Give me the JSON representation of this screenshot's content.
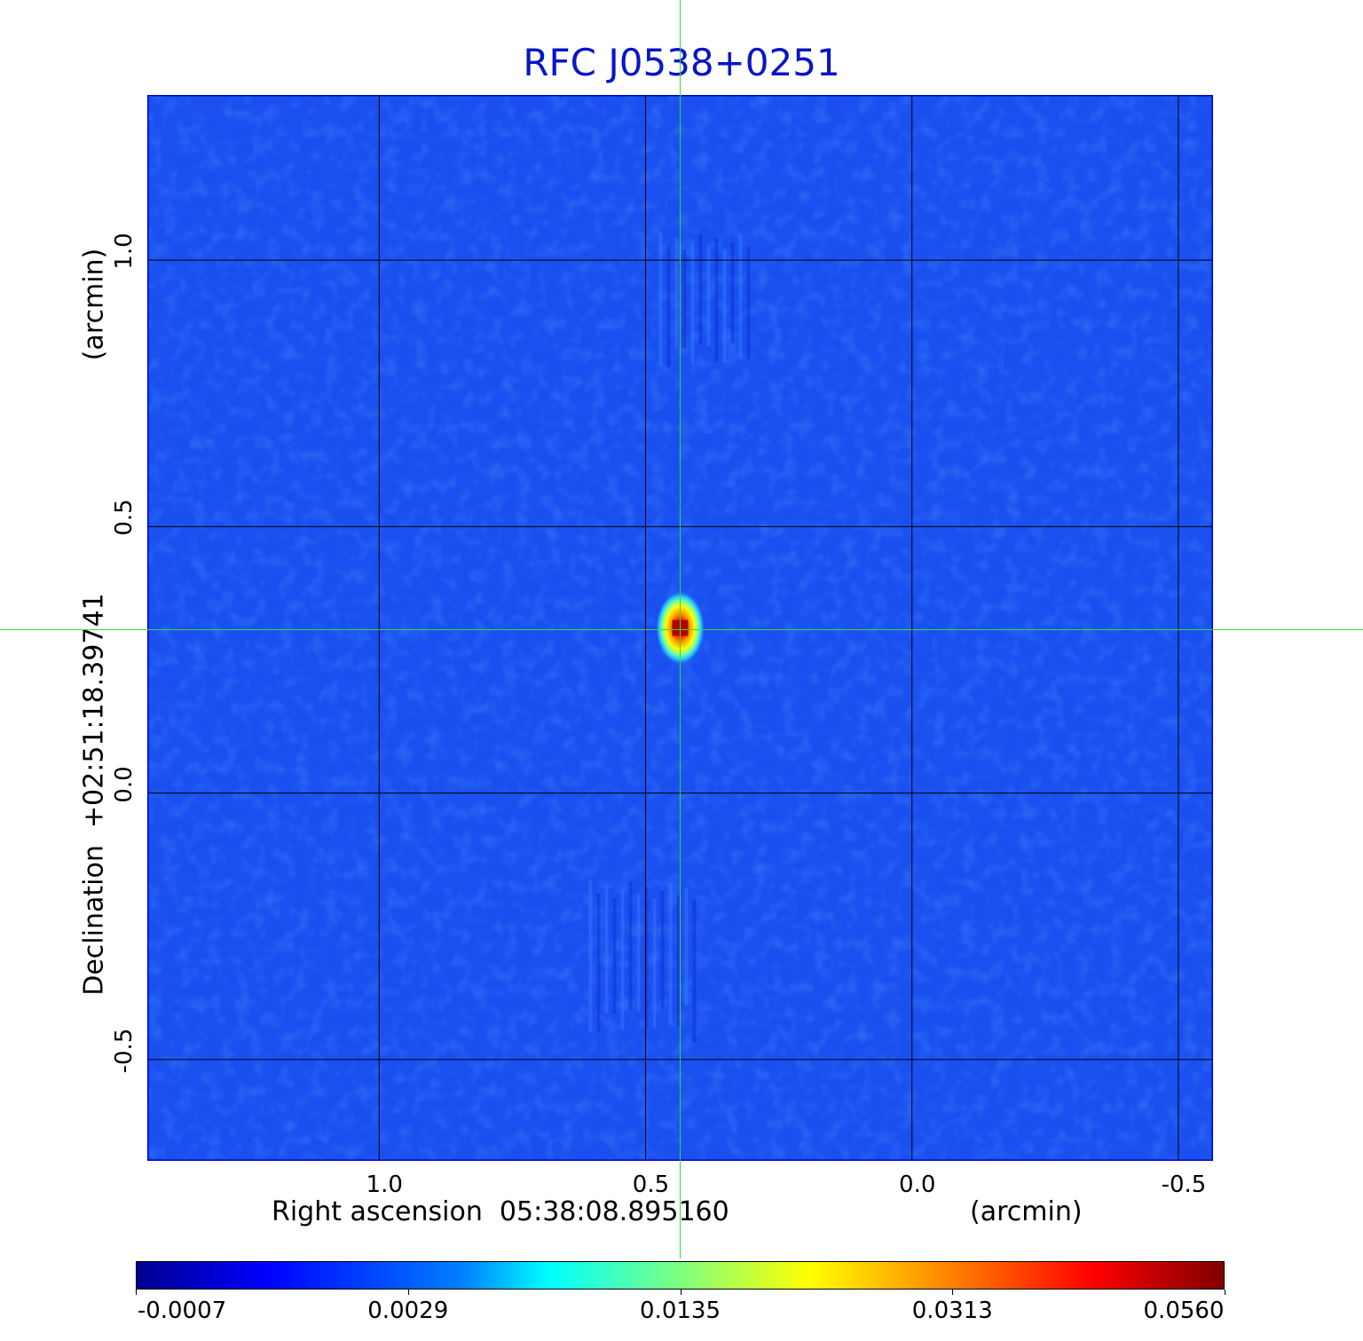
{
  "chart_data": {
    "type": "heatmap",
    "title": "RFC J0538+0251",
    "xlabel": "Right ascension  05:38:08.895160",
    "xunit": "(arcmin)",
    "ylabel": "Declination  +02:51:18.39741",
    "yunit": "(arcmin)",
    "x_ticks": [
      "1.0",
      "0.5",
      "0.0",
      "-0.5"
    ],
    "x_tick_values": [
      1.0,
      0.5,
      0.0,
      -0.5
    ],
    "y_ticks": [
      "1.0",
      "0.5",
      "0.0",
      "-0.5"
    ],
    "y_tick_values": [
      1.0,
      0.5,
      0.0,
      -0.5
    ],
    "xlim": [
      1.435,
      -0.565
    ],
    "ylim": [
      -0.69,
      1.31
    ],
    "grid": true,
    "source_peak": {
      "x": 0.435,
      "y": 0.31,
      "value": 0.056
    },
    "colorbar": {
      "ticks": [
        "-0.0007",
        "0.0029",
        "0.0135",
        "0.0313",
        "0.0560"
      ],
      "colormap": "jet",
      "colors": [
        "#00008f",
        "#0000ff",
        "#00ffff",
        "#ffff00",
        "#ff0000",
        "#800000"
      ]
    },
    "crosshair_color": "#33dd33",
    "background_level_color": "#1a4ff0"
  }
}
